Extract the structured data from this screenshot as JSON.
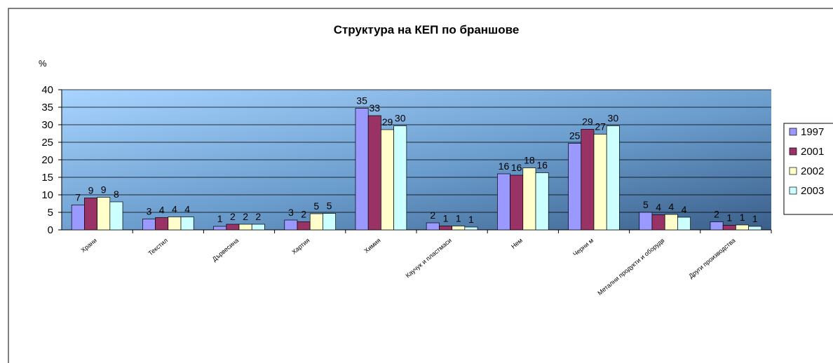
{
  "chart_data": {
    "type": "bar",
    "title": "Структура на КЕП по браншове",
    "ylabel": "%",
    "categories": [
      "Храни",
      "Текстил",
      "Дървесина",
      "Хартия",
      "Химия",
      "Каучук и пластмаси",
      "Нем",
      "Черни м",
      "Метални продукти и оборудв",
      "Други производства"
    ],
    "series": [
      {
        "name": "1997",
        "color": "#9999ff",
        "values": [
          7.1,
          3.1,
          1.0,
          2.8,
          34.7,
          2.0,
          16.0,
          24.7,
          5.0,
          2.3
        ],
        "value_labels": [
          "7",
          "3",
          "1",
          "3",
          "35",
          "2",
          "16",
          "25",
          "5",
          "2"
        ]
      },
      {
        "name": "2001",
        "color": "#993366",
        "values": [
          9.1,
          3.5,
          1.6,
          2.3,
          32.6,
          1.1,
          15.6,
          28.7,
          4.3,
          1.3
        ],
        "value_labels": [
          "9",
          "4",
          "2",
          "2",
          "33",
          "1",
          "16",
          "29",
          "4",
          "1"
        ]
      },
      {
        "name": "2002",
        "color": "#ffffcc",
        "values": [
          9.3,
          3.7,
          1.6,
          4.6,
          28.6,
          1.1,
          17.7,
          27.3,
          4.4,
          1.4
        ],
        "value_labels": [
          "9",
          "4",
          "2",
          "5",
          "29",
          "1",
          "18",
          "27",
          "4",
          "1"
        ]
      },
      {
        "name": "2003",
        "color": "#ccffff",
        "values": [
          8.0,
          3.7,
          1.6,
          4.7,
          29.7,
          0.8,
          16.3,
          29.7,
          3.6,
          1.0
        ],
        "value_labels": [
          "8",
          "4",
          "2",
          "5",
          "30",
          "1",
          "16",
          "30",
          "4",
          "1"
        ]
      }
    ],
    "ylim": [
      0,
      40
    ],
    "yticks": [
      0,
      5,
      10,
      15,
      20,
      25,
      30,
      35,
      40
    ],
    "grid": true,
    "legend": "right"
  }
}
